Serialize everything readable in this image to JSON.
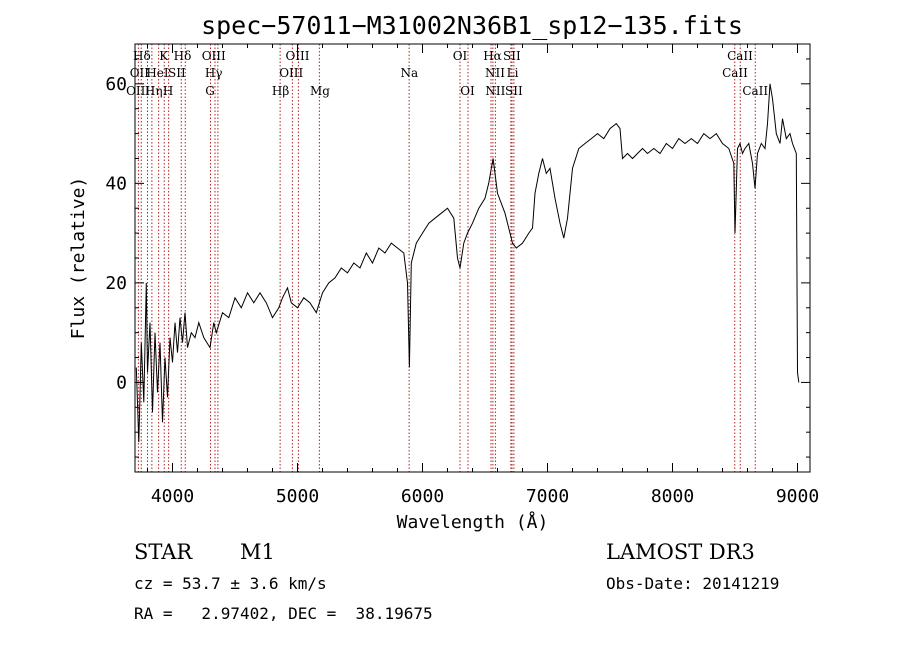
{
  "chart_data": {
    "type": "line",
    "title": "spec−57011−M31002N36B1_sp12−135.fits",
    "xlabel": "Wavelength (Å)",
    "ylabel": "Flux (relative)",
    "xlim": [
      3700,
      9100
    ],
    "ylim": [
      -18,
      68
    ],
    "x_ticks": [
      4000,
      5000,
      6000,
      7000,
      8000,
      9000
    ],
    "x_tick_labels": [
      "4000",
      "5000",
      "6000",
      "7000",
      "8000",
      "9000"
    ],
    "y_ticks": [
      0,
      20,
      40,
      60
    ],
    "y_tick_labels": [
      "0",
      "20",
      "40",
      "60"
    ],
    "series": [
      {
        "name": "flux",
        "color": "#000000",
        "points": [
          [
            3710,
            3
          ],
          [
            3730,
            -12
          ],
          [
            3750,
            8
          ],
          [
            3770,
            -4
          ],
          [
            3790,
            20
          ],
          [
            3800,
            2
          ],
          [
            3820,
            12
          ],
          [
            3840,
            -6
          ],
          [
            3860,
            10
          ],
          [
            3880,
            -2
          ],
          [
            3900,
            8
          ],
          [
            3920,
            -8
          ],
          [
            3940,
            5
          ],
          [
            3960,
            -3
          ],
          [
            3980,
            9
          ],
          [
            4000,
            4
          ],
          [
            4020,
            12
          ],
          [
            4040,
            6
          ],
          [
            4060,
            13
          ],
          [
            4080,
            8
          ],
          [
            4100,
            14
          ],
          [
            4120,
            7
          ],
          [
            4150,
            10
          ],
          [
            4180,
            9
          ],
          [
            4210,
            12
          ],
          [
            4250,
            9
          ],
          [
            4300,
            7
          ],
          [
            4330,
            12
          ],
          [
            4350,
            10
          ],
          [
            4400,
            14
          ],
          [
            4450,
            13
          ],
          [
            4500,
            17
          ],
          [
            4550,
            15
          ],
          [
            4600,
            18
          ],
          [
            4650,
            16
          ],
          [
            4700,
            18
          ],
          [
            4750,
            16
          ],
          [
            4800,
            13
          ],
          [
            4850,
            15
          ],
          [
            4880,
            17
          ],
          [
            4920,
            19
          ],
          [
            4950,
            16
          ],
          [
            5000,
            15
          ],
          [
            5050,
            17
          ],
          [
            5100,
            16
          ],
          [
            5150,
            14
          ],
          [
            5200,
            18
          ],
          [
            5250,
            20
          ],
          [
            5300,
            21
          ],
          [
            5350,
            23
          ],
          [
            5400,
            22
          ],
          [
            5450,
            24
          ],
          [
            5500,
            23
          ],
          [
            5550,
            26
          ],
          [
            5600,
            24
          ],
          [
            5650,
            27
          ],
          [
            5700,
            26
          ],
          [
            5750,
            28
          ],
          [
            5800,
            27
          ],
          [
            5850,
            26
          ],
          [
            5880,
            20
          ],
          [
            5895,
            3
          ],
          [
            5910,
            24
          ],
          [
            5950,
            28
          ],
          [
            6000,
            30
          ],
          [
            6050,
            32
          ],
          [
            6100,
            33
          ],
          [
            6150,
            34
          ],
          [
            6200,
            35
          ],
          [
            6250,
            33
          ],
          [
            6280,
            25
          ],
          [
            6300,
            23
          ],
          [
            6330,
            28
          ],
          [
            6360,
            30
          ],
          [
            6400,
            32
          ],
          [
            6450,
            35
          ],
          [
            6500,
            37
          ],
          [
            6530,
            40
          ],
          [
            6550,
            43
          ],
          [
            6565,
            45
          ],
          [
            6580,
            42
          ],
          [
            6600,
            38
          ],
          [
            6630,
            36
          ],
          [
            6660,
            34
          ],
          [
            6700,
            30
          ],
          [
            6720,
            28
          ],
          [
            6750,
            27
          ],
          [
            6800,
            28
          ],
          [
            6850,
            30
          ],
          [
            6880,
            31
          ],
          [
            6900,
            38
          ],
          [
            6930,
            42
          ],
          [
            6960,
            45
          ],
          [
            6990,
            42
          ],
          [
            7020,
            43
          ],
          [
            7060,
            37
          ],
          [
            7100,
            32
          ],
          [
            7130,
            29
          ],
          [
            7160,
            33
          ],
          [
            7200,
            43
          ],
          [
            7250,
            47
          ],
          [
            7300,
            48
          ],
          [
            7350,
            49
          ],
          [
            7400,
            50
          ],
          [
            7450,
            49
          ],
          [
            7500,
            51
          ],
          [
            7550,
            52
          ],
          [
            7580,
            51
          ],
          [
            7600,
            45
          ],
          [
            7640,
            46
          ],
          [
            7680,
            45
          ],
          [
            7720,
            46
          ],
          [
            7760,
            47
          ],
          [
            7800,
            46
          ],
          [
            7850,
            47
          ],
          [
            7900,
            46
          ],
          [
            7950,
            48
          ],
          [
            8000,
            47
          ],
          [
            8050,
            49
          ],
          [
            8100,
            48
          ],
          [
            8150,
            49
          ],
          [
            8200,
            48
          ],
          [
            8250,
            50
          ],
          [
            8300,
            49
          ],
          [
            8350,
            50
          ],
          [
            8400,
            48
          ],
          [
            8450,
            47
          ],
          [
            8490,
            44
          ],
          [
            8500,
            30
          ],
          [
            8520,
            47
          ],
          [
            8540,
            48
          ],
          [
            8560,
            46
          ],
          [
            8580,
            47
          ],
          [
            8610,
            48
          ],
          [
            8640,
            44
          ],
          [
            8660,
            39
          ],
          [
            8680,
            46
          ],
          [
            8710,
            48
          ],
          [
            8740,
            47
          ],
          [
            8760,
            52
          ],
          [
            8780,
            60
          ],
          [
            8800,
            57
          ],
          [
            8830,
            50
          ],
          [
            8860,
            48
          ],
          [
            8880,
            53
          ],
          [
            8910,
            49
          ],
          [
            8940,
            50
          ],
          [
            8960,
            48
          ],
          [
            8990,
            46
          ],
          [
            9000,
            2
          ],
          [
            9010,
            0
          ]
        ]
      }
    ],
    "lines": [
      {
        "name": "Hdelta_1",
        "wavelength": 3750,
        "color": "#b22222"
      },
      {
        "name": "OIII_1",
        "wavelength": 3727,
        "color": "#b22222"
      },
      {
        "name": "OII_1",
        "wavelength": 3800,
        "color": "#b22222"
      },
      {
        "name": "Heta",
        "wavelength": 3835,
        "color": "#b22222"
      },
      {
        "name": "K",
        "wavelength": 3934,
        "color": "#b22222"
      },
      {
        "name": "HeI",
        "wavelength": 3889,
        "color": "#b22222"
      },
      {
        "name": "SII_1",
        "wavelength": 4070,
        "color": "#b22222"
      },
      {
        "name": "H",
        "wavelength": 3969,
        "color": "#b22222"
      },
      {
        "name": "Hdelta",
        "wavelength": 4102,
        "color": "#b22222"
      },
      {
        "name": "OIII_2",
        "wavelength": 4363,
        "color": "#b22222"
      },
      {
        "name": "Hgamma",
        "wavelength": 4340,
        "color": "#b22222"
      },
      {
        "name": "G",
        "wavelength": 4304,
        "color": "#b22222"
      },
      {
        "name": "OIII_3",
        "wavelength": 5007,
        "color": "#b22222"
      },
      {
        "name": "OIII_4",
        "wavelength": 4959,
        "color": "#b22222"
      },
      {
        "name": "Hbeta",
        "wavelength": 4861,
        "color": "#b22222"
      },
      {
        "name": "Mg",
        "wavelength": 5175,
        "color": "#b22222"
      },
      {
        "name": "Na",
        "wavelength": 5893,
        "color": "#b22222"
      },
      {
        "name": "OI_1",
        "wavelength": 6300,
        "color": "#b22222"
      },
      {
        "name": "OI_2",
        "wavelength": 6364,
        "color": "#b22222"
      },
      {
        "name": "Halpha",
        "wavelength": 6563,
        "color": "#b22222"
      },
      {
        "name": "NII_1",
        "wavelength": 6548,
        "color": "#b22222"
      },
      {
        "name": "NII_2",
        "wavelength": 6583,
        "color": "#b22222"
      },
      {
        "name": "SII_2",
        "wavelength": 6716,
        "color": "#b22222"
      },
      {
        "name": "SII_3",
        "wavelength": 6731,
        "color": "#b22222"
      },
      {
        "name": "Li",
        "wavelength": 6707,
        "color": "#b22222"
      },
      {
        "name": "CaII_1",
        "wavelength": 8498,
        "color": "#b22222"
      },
      {
        "name": "CaII_2",
        "wavelength": 8542,
        "color": "#b22222"
      },
      {
        "name": "CaII_3",
        "wavelength": 8662,
        "color": "#b22222"
      }
    ],
    "line_labels": [
      {
        "text": "Hδ",
        "wavelength": 3755,
        "row": 1
      },
      {
        "text": "K",
        "wavelength": 3930,
        "row": 1
      },
      {
        "text": "Hδ",
        "wavelength": 4080,
        "row": 1
      },
      {
        "text": "OIII",
        "wavelength": 4330,
        "row": 1
      },
      {
        "text": "OIII",
        "wavelength": 5000,
        "row": 1
      },
      {
        "text": "OI",
        "wavelength": 6300,
        "row": 1
      },
      {
        "text": "Hα",
        "wavelength": 6560,
        "row": 1
      },
      {
        "text": "SII",
        "wavelength": 6715,
        "row": 1
      },
      {
        "text": "CaII",
        "wavelength": 8540,
        "row": 1
      },
      {
        "text": "OII",
        "wavelength": 3735,
        "row": 2
      },
      {
        "text": "HeI",
        "wavelength": 3880,
        "row": 2
      },
      {
        "text": "SII",
        "wavelength": 4035,
        "row": 2
      },
      {
        "text": "Hγ",
        "wavelength": 4330,
        "row": 2
      },
      {
        "text": "OIII",
        "wavelength": 4950,
        "row": 2
      },
      {
        "text": "Na",
        "wavelength": 5895,
        "row": 2
      },
      {
        "text": "NII",
        "wavelength": 6580,
        "row": 2
      },
      {
        "text": "Li",
        "wavelength": 6720,
        "row": 2
      },
      {
        "text": "CaII",
        "wavelength": 8500,
        "row": 2
      },
      {
        "text": "OIII",
        "wavelength": 3725,
        "row": 3
      },
      {
        "text": "Hη",
        "wavelength": 3850,
        "row": 3
      },
      {
        "text": "H",
        "wavelength": 3965,
        "row": 3
      },
      {
        "text": "G",
        "wavelength": 4300,
        "row": 3
      },
      {
        "text": "Hβ",
        "wavelength": 4865,
        "row": 3
      },
      {
        "text": "Mg",
        "wavelength": 5180,
        "row": 3
      },
      {
        "text": "OI",
        "wavelength": 6360,
        "row": 3
      },
      {
        "text": "NII",
        "wavelength": 6583,
        "row": 3
      },
      {
        "text": "SII",
        "wavelength": 6731,
        "row": 3
      },
      {
        "text": "CaII",
        "wavelength": 8662,
        "row": 3
      }
    ]
  },
  "info": {
    "object_class": "STAR",
    "subclass": "M1",
    "survey": "LAMOST DR3",
    "cz_line": "cz = 53.7 ± 3.6 km/s",
    "obs_date": "Obs-Date: 20141219",
    "coords": "RA =   2.97402, DEC =  38.19675"
  }
}
